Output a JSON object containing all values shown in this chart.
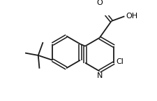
{
  "bg_color": "#ffffff",
  "bond_color": "#1a1a1a",
  "text_color": "#000000",
  "line_width": 1.3,
  "font_size": 7.5,
  "figsize": [
    2.25,
    1.44
  ],
  "dpi": 100,
  "xlim": [
    0,
    225
  ],
  "ylim": [
    0,
    144
  ]
}
